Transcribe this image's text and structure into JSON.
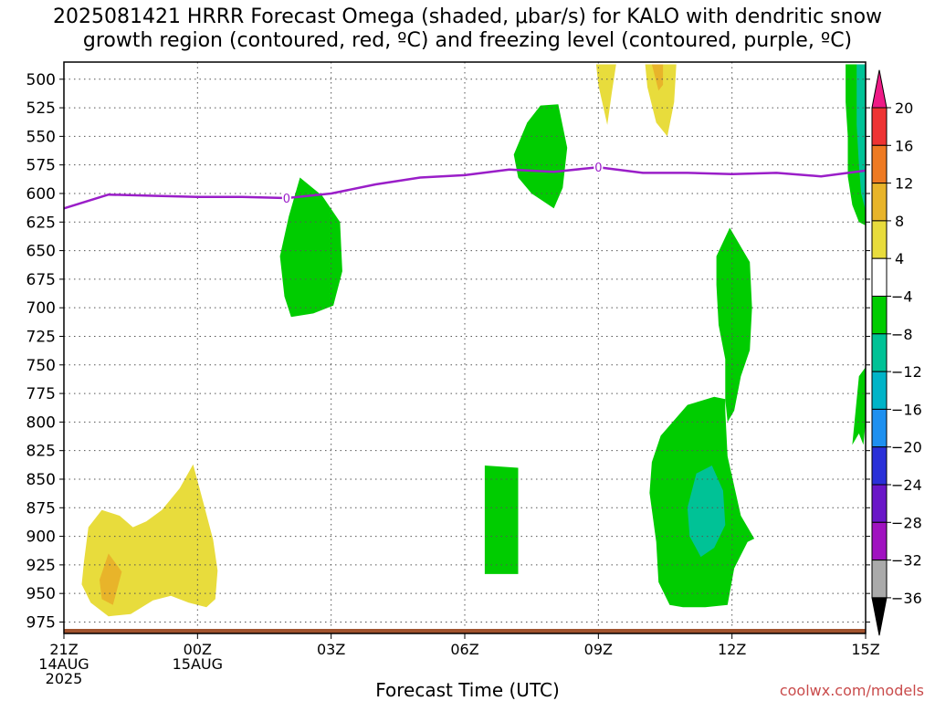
{
  "title": {
    "line1": "2025081421 HRRR Forecast Omega (shaded, μbar/s) for KALO with dendritic snow",
    "line2": "growth region (contoured, red, ºC) and freezing level (contoured, purple, ºC)"
  },
  "credit": "coolwx.com/models",
  "chart_data": {
    "type": "heatmap",
    "title": "2025081421 HRRR Forecast Omega (shaded, μbar/s) for KALO with dendritic snow growth region (contoured, red, ºC) and freezing level (contoured, purple, ºC)",
    "xlabel": "Forecast Time (UTC)",
    "ylabel": "",
    "x_ticks": [
      {
        "hour": 0,
        "lines": [
          "21Z",
          "14AUG",
          "2025"
        ]
      },
      {
        "hour": 3,
        "lines": [
          "00Z",
          "15AUG"
        ]
      },
      {
        "hour": 6,
        "lines": [
          "03Z"
        ]
      },
      {
        "hour": 9,
        "lines": [
          "06Z"
        ]
      },
      {
        "hour": 12,
        "lines": [
          "09Z"
        ]
      },
      {
        "hour": 15,
        "lines": [
          "12Z"
        ]
      },
      {
        "hour": 18,
        "lines": [
          "15Z"
        ]
      }
    ],
    "xlim": [
      0,
      18
    ],
    "y_ticks": [
      500,
      525,
      550,
      575,
      600,
      625,
      650,
      675,
      700,
      725,
      750,
      775,
      800,
      825,
      850,
      875,
      900,
      925,
      950,
      975
    ],
    "ylim": [
      485,
      985
    ],
    "ground_level_hpa": 985,
    "colorbar": {
      "labels": [
        "20",
        "16",
        "12",
        "8",
        "4",
        "-4",
        "-8",
        "-12",
        "-16",
        "-20",
        "-24",
        "-28",
        "-32",
        "-36"
      ],
      "colors": [
        "#ee1a86",
        "#ee3333",
        "#ee7a22",
        "#e8b42a",
        "#e8dc3c",
        "#ffffff",
        "#00cc00",
        "#00c296",
        "#00b4c8",
        "#1e90f0",
        "#2a30d8",
        "#6a16c8",
        "#a012c0",
        "#aaaaaa",
        "#000000"
      ]
    },
    "freezing_level": {
      "label": "0",
      "color": "#9a1ec8",
      "points": [
        [
          0,
          613
        ],
        [
          1,
          601
        ],
        [
          2,
          602
        ],
        [
          3,
          603
        ],
        [
          4,
          603
        ],
        [
          5,
          604
        ],
        [
          6,
          600
        ],
        [
          7,
          592
        ],
        [
          8,
          586
        ],
        [
          9,
          584
        ],
        [
          10,
          579
        ],
        [
          11,
          581
        ],
        [
          12,
          577
        ],
        [
          13,
          582
        ],
        [
          14,
          582
        ],
        [
          15,
          583
        ],
        [
          16,
          582
        ],
        [
          17,
          585
        ],
        [
          18,
          580
        ]
      ],
      "label_hours": [
        5,
        12
      ]
    },
    "omega_regions": [
      {
        "value": 4,
        "color": "#e8dc3c",
        "points": [
          [
            0.45,
            922
          ],
          [
            0.55,
            892
          ],
          [
            0.85,
            877
          ],
          [
            1.25,
            882
          ],
          [
            1.55,
            892
          ],
          [
            1.85,
            887
          ],
          [
            2.2,
            877
          ],
          [
            2.6,
            858
          ],
          [
            2.9,
            837
          ],
          [
            3.1,
            866
          ],
          [
            3.35,
            903
          ],
          [
            3.45,
            930
          ],
          [
            3.4,
            955
          ],
          [
            3.2,
            962
          ],
          [
            2.8,
            958
          ],
          [
            2.4,
            952
          ],
          [
            2.0,
            956
          ],
          [
            1.5,
            968
          ],
          [
            1.0,
            970
          ],
          [
            0.6,
            958
          ],
          [
            0.4,
            942
          ]
        ]
      },
      {
        "value": 8,
        "color": "#e8b42a",
        "points": [
          [
            0.8,
            938
          ],
          [
            1.0,
            915
          ],
          [
            1.3,
            931
          ],
          [
            1.1,
            960
          ],
          [
            0.85,
            955
          ]
        ]
      },
      {
        "value": -4,
        "color": "#00cc00",
        "points": [
          [
            4.85,
            655
          ],
          [
            5.05,
            620
          ],
          [
            5.3,
            586
          ],
          [
            5.8,
            602
          ],
          [
            6.2,
            625
          ],
          [
            6.25,
            668
          ],
          [
            6.05,
            698
          ],
          [
            5.6,
            705
          ],
          [
            5.1,
            708
          ],
          [
            4.95,
            690
          ]
        ]
      },
      {
        "value": -4,
        "color": "#00cc00",
        "points": [
          [
            10.1,
            566
          ],
          [
            10.4,
            538
          ],
          [
            10.7,
            523
          ],
          [
            11.1,
            522
          ],
          [
            11.3,
            560
          ],
          [
            11.2,
            595
          ],
          [
            11.0,
            613
          ],
          [
            10.5,
            600
          ],
          [
            10.2,
            586
          ]
        ]
      },
      {
        "value": -4,
        "color": "#00cc00",
        "points": [
          [
            9.45,
            838
          ],
          [
            10.2,
            840
          ],
          [
            10.2,
            933
          ],
          [
            9.45,
            933
          ]
        ]
      },
      {
        "value": -4,
        "color": "#00cc00",
        "points": [
          [
            13.2,
            835
          ],
          [
            13.4,
            812
          ],
          [
            14.0,
            785
          ],
          [
            14.6,
            778
          ],
          [
            14.85,
            780
          ],
          [
            14.85,
            790
          ],
          [
            14.9,
            830
          ],
          [
            15.2,
            882
          ],
          [
            15.5,
            902
          ],
          [
            15.35,
            905
          ],
          [
            15.05,
            928
          ],
          [
            14.9,
            960
          ],
          [
            14.4,
            962
          ],
          [
            13.9,
            962
          ],
          [
            13.6,
            960
          ],
          [
            13.35,
            940
          ],
          [
            13.3,
            905
          ],
          [
            13.15,
            862
          ]
        ]
      },
      {
        "value": -4,
        "color": "#00cc00",
        "points": [
          [
            14.65,
            655
          ],
          [
            14.95,
            630
          ],
          [
            15.4,
            660
          ],
          [
            15.45,
            700
          ],
          [
            15.4,
            737
          ],
          [
            15.2,
            760
          ],
          [
            15.05,
            790
          ],
          [
            14.9,
            800
          ],
          [
            14.85,
            780
          ],
          [
            14.85,
            745
          ],
          [
            14.7,
            715
          ],
          [
            14.65,
            680
          ]
        ]
      },
      {
        "value": -4,
        "color": "#00cc00",
        "points": [
          [
            17.7,
            820
          ],
          [
            17.85,
            760
          ],
          [
            18.0,
            752
          ],
          [
            18.0,
            800
          ],
          [
            17.95,
            820
          ],
          [
            17.85,
            810
          ]
        ]
      },
      {
        "value": -4,
        "color": "#00cc00",
        "points": [
          [
            17.55,
            487
          ],
          [
            18.0,
            487
          ],
          [
            18.0,
            628
          ],
          [
            17.85,
            625
          ],
          [
            17.7,
            610
          ],
          [
            17.6,
            585
          ],
          [
            17.6,
            550
          ],
          [
            17.55,
            520
          ]
        ]
      },
      {
        "value": -8,
        "color": "#00c296",
        "points": [
          [
            17.8,
            487
          ],
          [
            18.0,
            487
          ],
          [
            18.0,
            615
          ],
          [
            17.9,
            600
          ],
          [
            17.85,
            575
          ],
          [
            17.8,
            540
          ],
          [
            17.8,
            510
          ]
        ]
      },
      {
        "value": -8,
        "color": "#00c296",
        "points": [
          [
            14.0,
            875
          ],
          [
            14.2,
            845
          ],
          [
            14.55,
            838
          ],
          [
            14.8,
            860
          ],
          [
            14.85,
            890
          ],
          [
            14.6,
            910
          ],
          [
            14.3,
            918
          ],
          [
            14.05,
            900
          ]
        ]
      },
      {
        "value": 4,
        "color": "#e8dc3c",
        "points": [
          [
            13.05,
            487
          ],
          [
            13.5,
            487
          ],
          [
            13.75,
            487
          ],
          [
            13.7,
            520
          ],
          [
            13.55,
            550
          ],
          [
            13.3,
            538
          ],
          [
            13.1,
            507
          ]
        ]
      },
      {
        "value": 4,
        "color": "#e8dc3c",
        "points": [
          [
            11.95,
            487
          ],
          [
            12.4,
            487
          ],
          [
            12.3,
            512
          ],
          [
            12.2,
            540
          ],
          [
            12.0,
            505
          ]
        ]
      },
      {
        "value": 8,
        "color": "#e8b42a",
        "points": [
          [
            13.2,
            487
          ],
          [
            13.45,
            487
          ],
          [
            13.45,
            505
          ],
          [
            13.35,
            510
          ]
        ]
      }
    ]
  }
}
